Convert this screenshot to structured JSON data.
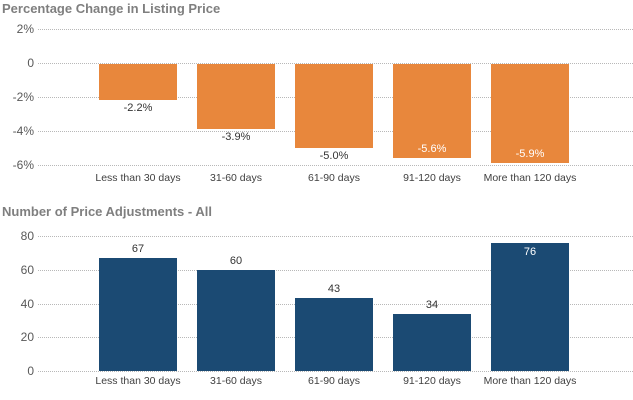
{
  "style": {
    "background": "#FFFFFF",
    "title_color": "#7F7F7F",
    "tick_color": "#595959",
    "category_color": "#404040",
    "value_label_outside_color": "#333333",
    "value_label_inside_color": "#FFFFFF",
    "gridline_color": "#B8B8B8"
  },
  "chart_data": [
    {
      "type": "bar",
      "title": "Percentage Change in Listing Price",
      "categories": [
        "Less than 30 days",
        "31-60 days",
        "61-90 days",
        "91-120 days",
        "More than 120 days"
      ],
      "values": [
        -2.2,
        -3.9,
        -5.0,
        -5.6,
        -5.9
      ],
      "value_labels": [
        "-2.2%",
        "-3.9%",
        "-5.0%",
        "-5.6%",
        "-5.9%"
      ],
      "yticks": [
        {
          "value": 2,
          "label": "2%"
        },
        {
          "value": 0,
          "label": "0"
        },
        {
          "value": -2,
          "label": "-2%"
        },
        {
          "value": -4,
          "label": "-4%"
        },
        {
          "value": -6,
          "label": "-6%"
        }
      ],
      "ymax": 2,
      "ymin": -6,
      "bar_color": "#E8873C",
      "grid": "dotted horizontal",
      "legend": "none",
      "xlabel": "",
      "ylabel": ""
    },
    {
      "type": "bar",
      "title": "Number of Price Adjustments - All",
      "categories": [
        "Less than 30 days",
        "31-60 days",
        "61-90 days",
        "91-120 days",
        "More than 120 days"
      ],
      "values": [
        67,
        60,
        43,
        34,
        76
      ],
      "value_labels": [
        "67",
        "60",
        "43",
        "34",
        "76"
      ],
      "yticks": [
        {
          "value": 80,
          "label": "80"
        },
        {
          "value": 60,
          "label": "60"
        },
        {
          "value": 40,
          "label": "40"
        },
        {
          "value": 20,
          "label": "20"
        },
        {
          "value": 0,
          "label": "0"
        }
      ],
      "ymax": 80,
      "ymin": 0,
      "bar_color": "#1B4A73",
      "grid": "dotted horizontal",
      "legend": "none",
      "xlabel": "",
      "ylabel": ""
    }
  ]
}
